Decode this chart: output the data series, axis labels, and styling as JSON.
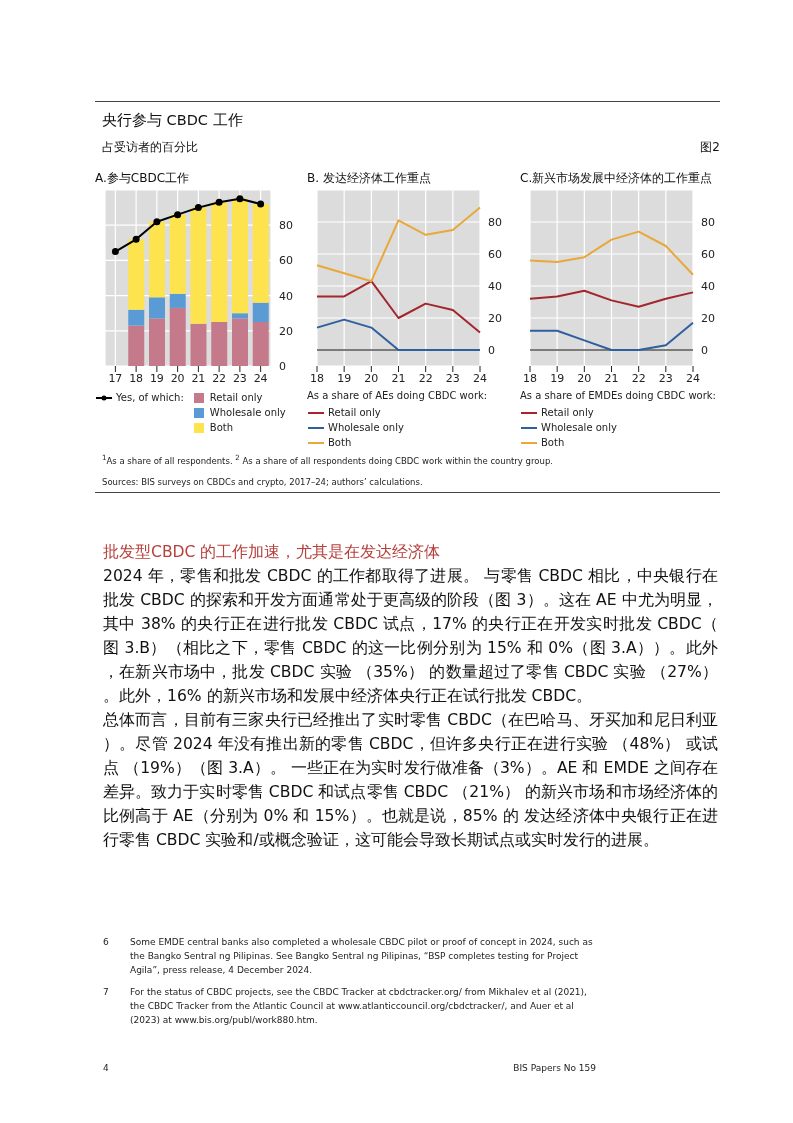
{
  "chart_data": [
    {
      "type": "bar",
      "title": "A.参与CBDC工作",
      "categories": [
        "17",
        "18",
        "19",
        "20",
        "21",
        "22",
        "23",
        "24"
      ],
      "stacked": true,
      "ylim": [
        0,
        100
      ],
      "yticks": [
        0,
        20,
        40,
        60,
        80
      ],
      "grid": true,
      "legend": "bottom",
      "marker": "circle",
      "series": [
        {
          "name": "Yes, of which:",
          "type": "line",
          "color": "#000000",
          "values": [
            65,
            72,
            82,
            86,
            90,
            93,
            95,
            92
          ]
        },
        {
          "name": "Retail only",
          "color": "#c47a8a",
          "values": [
            null,
            23,
            27,
            33,
            24,
            25,
            27,
            25
          ]
        },
        {
          "name": "Wholesale only",
          "color": "#5b9bd5",
          "values": [
            null,
            9,
            12,
            8,
            0,
            0,
            3,
            11
          ]
        },
        {
          "name": "Both",
          "color": "#fde34e",
          "values": [
            null,
            40,
            43,
            45,
            66,
            68,
            65,
            56
          ]
        }
      ],
      "annotations": [
        "央行参与 CBDC 工作",
        "占受访者的百分比",
        "图2",
        "$^{1}$As a share of all respondents. $^{2}$ As a share of all respondents doing CBDC work within the country group.",
        "Sources: BIS surveys on CBDCs and crypto, 2017–24; authors’ calculations.",
        "批发型CBDC 的工作加速，尤其是在发达经济体",
        "2024 年，零售和批发 CBDC 的工作都取得了进展。 与零售 CBDC 相比，中央银行在批发 CBDC 的探索和开发方面通常处于更高级的阶段（图 3）。这在 AE 中尤为明显，其中 38% 的央行正在进行批发 CBDC 试点，17% 的央行正在开发实时批发 CBDC（图 3.B）（相比之下，零售 CBDC 的这一比例分别为 15% 和 0%（图 3.A））。此外，在新兴市场中，批发 CBDC 实验 （35%） 的数量超过了零售 CBDC 实验 （27%）。此外，16% 的新兴市场和发展中经济体央行正在试行批发 CBDC。",
        "总体而言，目前有三家央行已经推出了实时零售 CBDC（在巴哈马、牙买加和尼日利亚）。尽管 2024 年没有推出新的零售 CBDC，但许多央行正在进行实验 （48%） 或试点 （19%）（图 3.A）。 一些正在为实时发行做准备（3%）。AE 和 EMDE 之间存在差异。致力于实时零售 CBDC 和试点零售 CBDC （21%） 的新兴市场和市场经济体的比例高于 AE（分别为 0% 和 15%）。也就是说，85% 的 发达经济体中央银行正在进行零售 CBDC 实验和/或概念验证，这可能会导致长期试点或实时发行的进展。",
        "6",
        "Some EMDE central banks also completed a wholesale CBDC pilot or proof of concept in 2024, such as the Bangko Sentral ng Pilipinas. See Bangko Sentral ng Pilipinas, “BSP completes testing for Project Agila”, press release, 4 December 2024.",
        "7",
        "For the status of CBDC projects, see the CBDC Tracker at cbdctracker.org/ from Mikhalev et al (2021), the CBDC Tracker from the Atlantic Council at www.atlanticcouncil.org/cbdctracker/, and Auer et al (2023) at www.bis.org/publ/work880.htm.",
        "4",
        "BIS Papers No 159"
      ]
    },
    {
      "type": "line",
      "title": "B. 发达经济体工作重点",
      "categories": [
        "18",
        "19",
        "20",
        "21",
        "22",
        "23",
        "24"
      ],
      "ylim": [
        -10,
        100
      ],
      "yticks": [
        0,
        20,
        40,
        60,
        80
      ],
      "grid": true,
      "legend": "bottom",
      "legend_title": "As a share of AEs doing CBDC work:",
      "ref_lines": [
        {
          "axis": "y",
          "value": 0,
          "color": "#555555"
        }
      ],
      "series": [
        {
          "name": "Retail only",
          "color": "#a3262d",
          "values": [
            33.5,
            33.5,
            43,
            20,
            29,
            25,
            11
          ]
        },
        {
          "name": "Wholesale only",
          "color": "#2e5f9e",
          "values": [
            14,
            19,
            14,
            0,
            0,
            0,
            0
          ]
        },
        {
          "name": "Both",
          "color": "#e8a83a",
          "values": [
            53,
            48,
            43,
            81,
            72,
            75,
            89
          ]
        }
      ]
    },
    {
      "type": "line",
      "title": "C.新兴市场发展中经济体的工作重点",
      "categories": [
        "18",
        "19",
        "20",
        "21",
        "22",
        "23",
        "24"
      ],
      "ylim": [
        -10,
        100
      ],
      "yticks": [
        0,
        20,
        40,
        60,
        80
      ],
      "grid": true,
      "legend": "bottom",
      "legend_title": "As a share of EMDEs doing CBDC work:",
      "ref_lines": [
        {
          "axis": "y",
          "value": 0,
          "color": "#555555"
        }
      ],
      "series": [
        {
          "name": "Retail only",
          "color": "#a3262d",
          "values": [
            32,
            33.5,
            37,
            31,
            27,
            32,
            36
          ]
        },
        {
          "name": "Wholesale only",
          "color": "#2e5f9e",
          "values": [
            12,
            12,
            6,
            0,
            0,
            3,
            17
          ]
        },
        {
          "name": "Both",
          "color": "#e8a83a",
          "values": [
            56,
            55,
            58,
            69,
            74,
            65,
            47
          ]
        }
      ]
    }
  ]
}
